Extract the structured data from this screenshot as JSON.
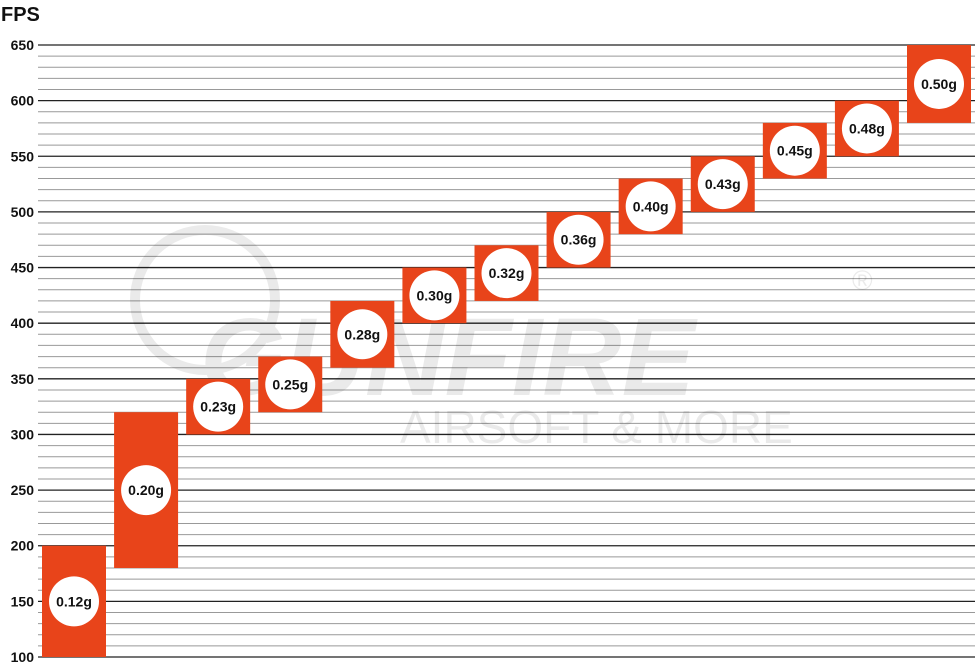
{
  "chart_data": {
    "type": "bar",
    "subtype": "floating-range",
    "title": "",
    "ylabel": "FPS",
    "xlabel": "",
    "ylim": [
      100,
      650
    ],
    "yticks": [
      100,
      150,
      200,
      250,
      300,
      350,
      400,
      450,
      500,
      550,
      600,
      650
    ],
    "minor_grid_step": 10,
    "grid": true,
    "bar_color": "#E8441A",
    "categories": [
      "0.12g",
      "0.20g",
      "0.23g",
      "0.25g",
      "0.28g",
      "0.30g",
      "0.32g",
      "0.36g",
      "0.40g",
      "0.43g",
      "0.45g",
      "0.48g",
      "0.50g"
    ],
    "ranges": [
      [
        100,
        200
      ],
      [
        180,
        320
      ],
      [
        300,
        350
      ],
      [
        320,
        370
      ],
      [
        360,
        420
      ],
      [
        400,
        450
      ],
      [
        420,
        470
      ],
      [
        450,
        500
      ],
      [
        480,
        530
      ],
      [
        500,
        550
      ],
      [
        530,
        580
      ],
      [
        550,
        600
      ],
      [
        580,
        650
      ]
    ]
  },
  "watermark": {
    "brand": "GUNFIRE",
    "tagline": "AIRSOFT & MORE",
    "mark": "®"
  }
}
